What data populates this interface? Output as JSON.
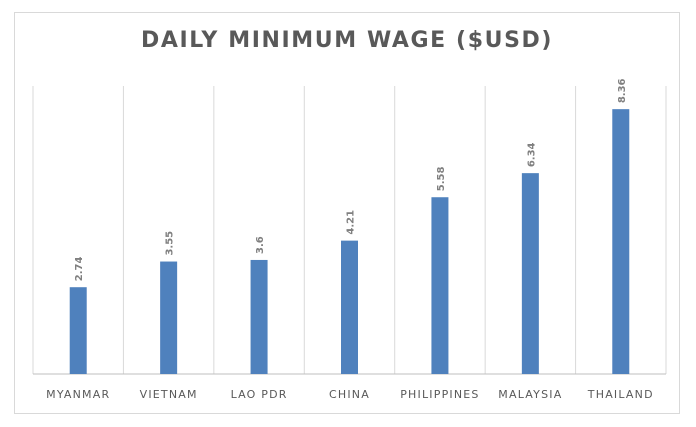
{
  "chart_data": {
    "type": "bar",
    "title": "DAILY MINIMUM WAGE ($USD)",
    "categories": [
      "MYANMAR",
      "VIETNAM",
      "LAO PDR",
      "CHINA",
      "PHILIPPINES",
      "MALAYSIA",
      "THAILAND"
    ],
    "values": [
      2.74,
      3.55,
      3.6,
      4.21,
      5.58,
      6.34,
      8.36
    ],
    "data_labels": [
      "2.74",
      "3.55",
      "3.6",
      "4.21",
      "5.58",
      "6.34",
      "8.36"
    ],
    "ylim": [
      0,
      9
    ],
    "grid": "vertical",
    "bar_color": "#4f81bd"
  }
}
